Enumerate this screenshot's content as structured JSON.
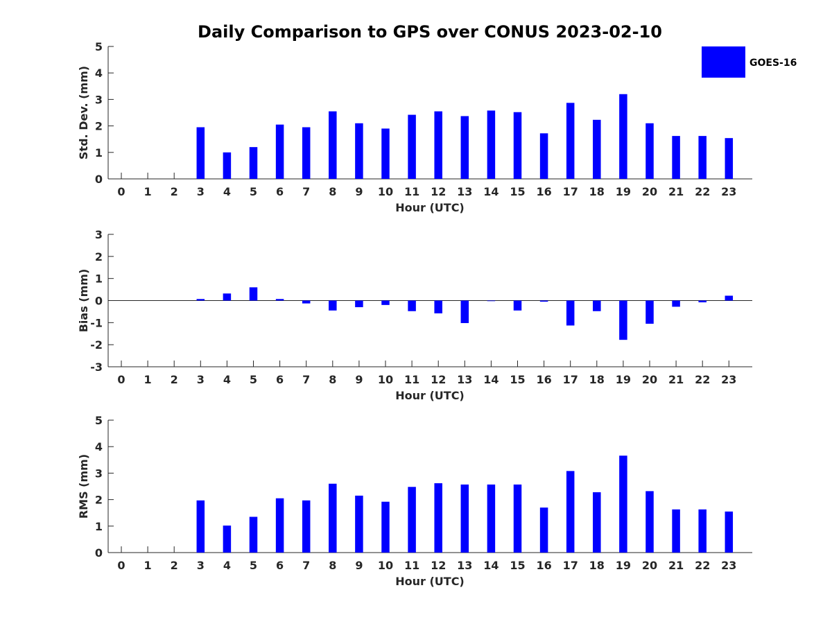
{
  "chart_data": [
    {
      "type": "bar",
      "title": "Daily Comparison to GPS over CONUS 2023-02-10",
      "xlabel": "Hour (UTC)",
      "ylabel": "Std. Dev. (mm)",
      "ylim": [
        0,
        5
      ],
      "yticks": [
        "0",
        "1",
        "2",
        "3",
        "4",
        "5"
      ],
      "categories": [
        "0",
        "1",
        "2",
        "3",
        "4",
        "5",
        "6",
        "7",
        "8",
        "9",
        "10",
        "11",
        "12",
        "13",
        "14",
        "15",
        "16",
        "17",
        "18",
        "19",
        "20",
        "21",
        "22",
        "23"
      ],
      "series": [
        {
          "name": "GOES-16",
          "color": "#0000ff",
          "values": [
            null,
            null,
            null,
            1.95,
            1.0,
            1.2,
            2.05,
            1.95,
            2.55,
            2.1,
            1.9,
            2.42,
            2.55,
            2.37,
            2.58,
            2.52,
            1.72,
            2.87,
            2.23,
            3.2,
            2.1,
            1.62,
            1.62,
            1.54
          ]
        }
      ],
      "legend": {
        "entries": [
          "GOES-16"
        ],
        "placement": "top-right"
      }
    },
    {
      "type": "bar",
      "title": "",
      "xlabel": "Hour (UTC)",
      "ylabel": "Bias (mm)",
      "ylim": [
        -3,
        3
      ],
      "yticks": [
        "-3",
        "-2",
        "-1",
        "0",
        "1",
        "2",
        "3"
      ],
      "categories": [
        "0",
        "1",
        "2",
        "3",
        "4",
        "5",
        "6",
        "7",
        "8",
        "9",
        "10",
        "11",
        "12",
        "13",
        "14",
        "15",
        "16",
        "17",
        "18",
        "19",
        "20",
        "21",
        "22",
        "23"
      ],
      "series": [
        {
          "name": "GOES-16",
          "color": "#0000ff",
          "values": [
            null,
            null,
            null,
            0.07,
            0.32,
            0.6,
            0.07,
            -0.13,
            -0.45,
            -0.3,
            -0.2,
            -0.48,
            -0.58,
            -1.02,
            0.0,
            -0.45,
            -0.05,
            -1.13,
            -0.48,
            -1.78,
            -1.05,
            -0.28,
            -0.08,
            0.22
          ]
        }
      ]
    },
    {
      "type": "bar",
      "title": "",
      "xlabel": "Hour (UTC)",
      "ylabel": "RMS (mm)",
      "ylim": [
        0,
        5
      ],
      "yticks": [
        "0",
        "1",
        "2",
        "3",
        "4",
        "5"
      ],
      "categories": [
        "0",
        "1",
        "2",
        "3",
        "4",
        "5",
        "6",
        "7",
        "8",
        "9",
        "10",
        "11",
        "12",
        "13",
        "14",
        "15",
        "16",
        "17",
        "18",
        "19",
        "20",
        "21",
        "22",
        "23"
      ],
      "series": [
        {
          "name": "GOES-16",
          "color": "#0000ff",
          "values": [
            null,
            null,
            null,
            1.97,
            1.02,
            1.35,
            2.05,
            1.97,
            2.6,
            2.15,
            1.92,
            2.48,
            2.62,
            2.57,
            2.57,
            2.57,
            1.7,
            3.08,
            2.28,
            3.66,
            2.32,
            1.63,
            1.63,
            1.55
          ]
        }
      ]
    }
  ]
}
